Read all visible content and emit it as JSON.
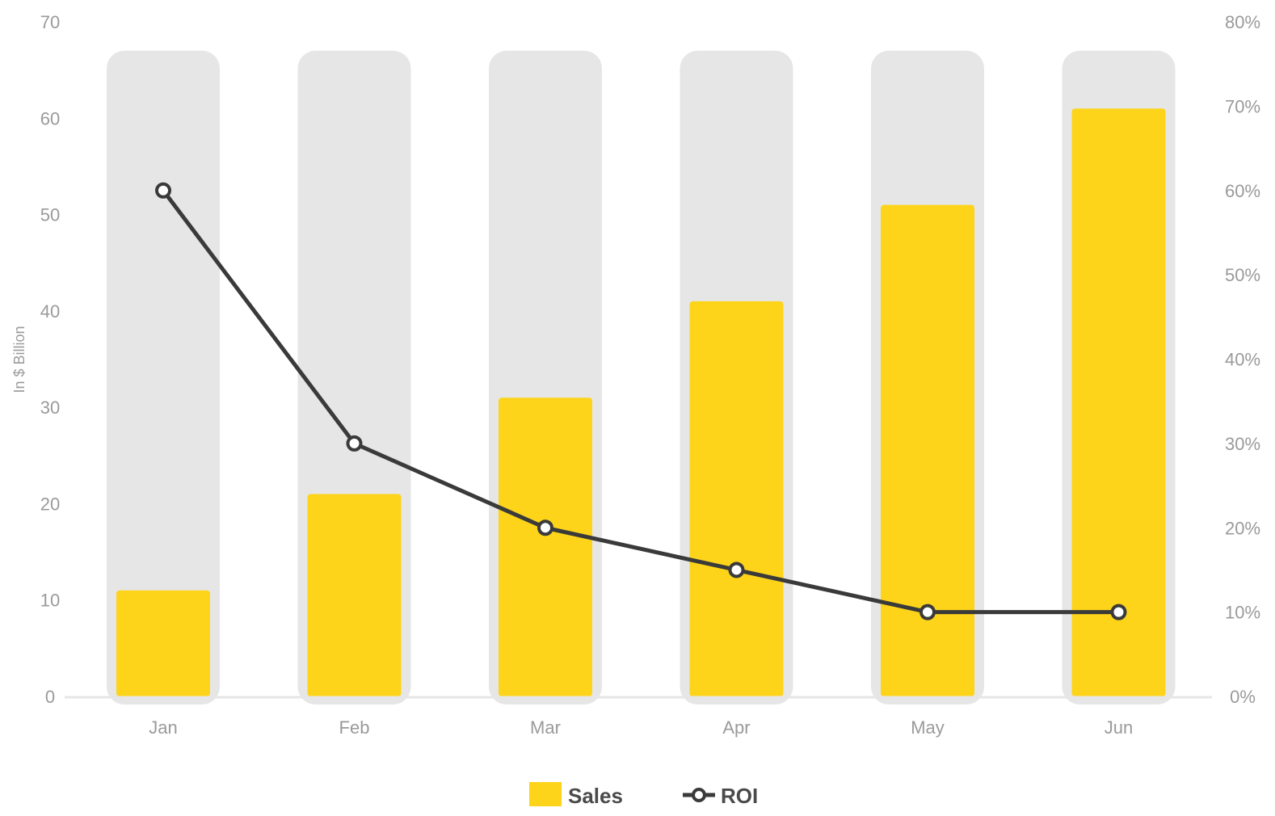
{
  "chart_data": {
    "type": "bar",
    "categories": [
      "Jan",
      "Feb",
      "Mar",
      "Apr",
      "May",
      "Jun"
    ],
    "series": [
      {
        "name": "Sales",
        "type": "bar",
        "axis": "left",
        "values": [
          11,
          21,
          31,
          41,
          51,
          61
        ],
        "color": "#FDD419",
        "background_color": "#E6E6E6"
      },
      {
        "name": "ROI",
        "type": "line",
        "axis": "right",
        "values": [
          60,
          30,
          20,
          15,
          10,
          10
        ],
        "color": "#3a3a3a",
        "marker": "circle-hollow"
      }
    ],
    "ylabel": "In $ Billion",
    "ylim": [
      0,
      70
    ],
    "yticks": [
      "0",
      "10",
      "20",
      "30",
      "40",
      "50",
      "60",
      "70"
    ],
    "y2lim": [
      0,
      80
    ],
    "y2ticks": [
      "0%",
      "10%",
      "20%",
      "30%",
      "40%",
      "50%",
      "60%",
      "70%",
      "80%"
    ],
    "bar_background_max": 67,
    "grid": false,
    "legend": {
      "position": "bottom-center"
    }
  }
}
